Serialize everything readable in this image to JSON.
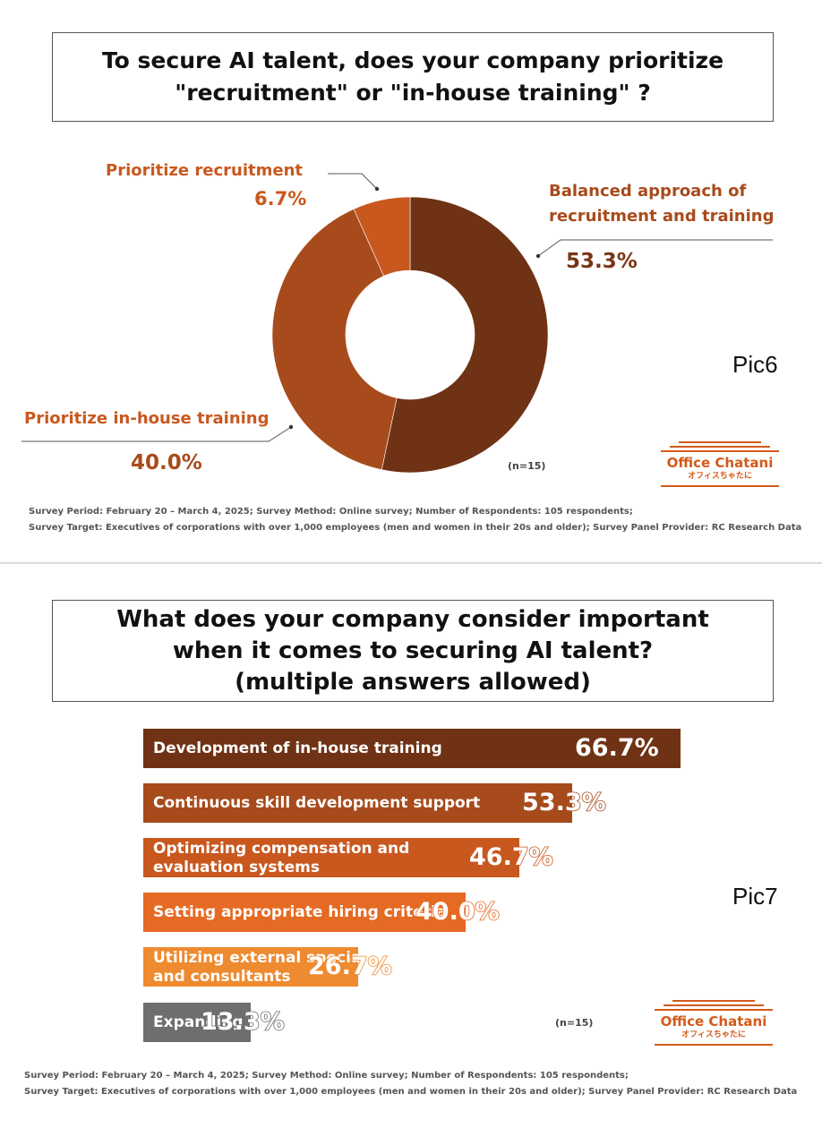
{
  "donut_chart": {
    "title": "To secure AI talent, does your company prioritize \"recruitment\" or \"in-house training\" ?",
    "pic_label": "Pic6",
    "n_label": "(n=15)",
    "footnote_1": "Survey Period: February 20 – March 4, 2025; Survey Method: Online survey; Number of Respondents: 105 respondents;",
    "footnote_2": "Survey Target: Executives of corporations with over 1,000 employees (men and women in their 20s and older); Survey Panel Provider: RC Research Data",
    "logo": {
      "brand": "Office Chatani",
      "kana": "オフィスちゃたに"
    },
    "labels": {
      "balanced_1": "Balanced approach of",
      "balanced_2": "recruitment and training",
      "balanced_value": "53.3%",
      "inhouse": "Prioritize in-house training",
      "inhouse_value": "40.0%",
      "recruit": "Prioritize recruitment",
      "recruit_value": "6.7%"
    }
  },
  "bar_chart": {
    "title_1": "What does your company consider important",
    "title_2": "when it comes to securing AI talent?",
    "title_3": "(multiple answers allowed)",
    "pic_label": "Pic7",
    "n_label": "(n=15)",
    "footnote_1": "Survey Period: February 20 – March 4, 2025; Survey Method: Online survey; Number of Respondents: 105 respondents;",
    "footnote_2": "Survey Target: Executives of corporations with over 1,000 employees (men and women in their 20s and older); Survey Panel Provider: RC Research Data",
    "logo": {
      "brand": "Office Chatani",
      "kana": "オフィスちゃたに"
    },
    "bars": [
      {
        "label_1": "Development of in-house training",
        "label_2": "",
        "value_text": "66.7%"
      },
      {
        "label_1": "Continuous skill development support",
        "label_2": "",
        "value_text": "53.3%"
      },
      {
        "label_1": "Optimizing compensation and",
        "label_2": "evaluation systems",
        "value_text": "46.7%"
      },
      {
        "label_1": "Setting appropriate hiring criteria",
        "label_2": "",
        "value_text": "40.0%"
      },
      {
        "label_1": "Utilizing external specialists",
        "label_2": "and consultants",
        "value_text": "26.7%"
      },
      {
        "label_1": "Expanding recruitment channels",
        "label_2": "",
        "value_text": "13.3%"
      }
    ]
  },
  "chart_data": [
    {
      "type": "pie",
      "title": "To secure AI talent, does your company prioritize \"recruitment\" or \"in-house training\" ?",
      "categories": [
        "Balanced approach of recruitment and training",
        "Prioritize in-house training",
        "Prioritize recruitment"
      ],
      "values": [
        53.3,
        40.0,
        6.7
      ],
      "colors": [
        "#6f3214",
        "#a84b1c",
        "#c9581f"
      ]
    },
    {
      "type": "bar",
      "title": "What does your company consider important when it comes to securing AI talent? (multiple answers allowed)",
      "categories": [
        "Development of in-house training",
        "Continuous skill development support",
        "Optimizing compensation and evaluation systems",
        "Setting appropriate hiring criteria",
        "Utilizing external specialists and consultants",
        "Expanding recruitment channels"
      ],
      "values": [
        66.7,
        53.3,
        46.7,
        40.0,
        26.7,
        13.3
      ],
      "colors": [
        "#6f3214",
        "#a84b1c",
        "#c9581f",
        "#e56a23",
        "#ee8a2f",
        "#6e6e6e"
      ]
    }
  ]
}
